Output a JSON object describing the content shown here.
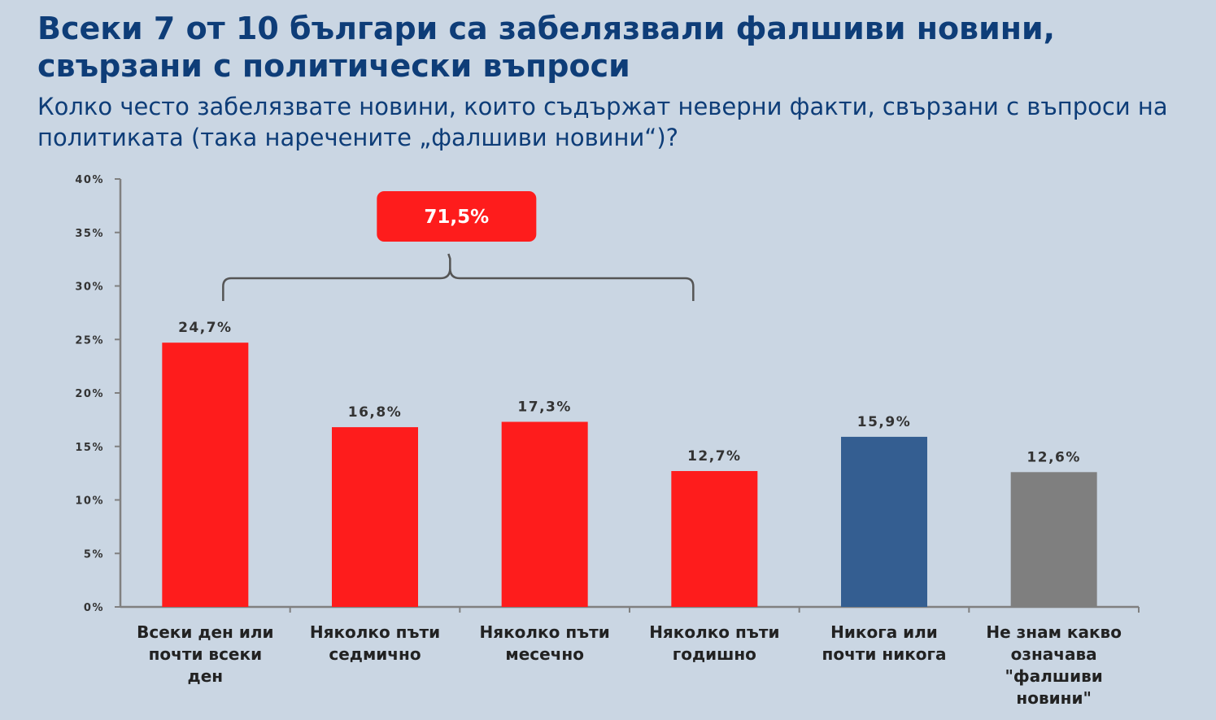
{
  "header": {
    "title": "Всеки 7 от 10 българи са забелязвали фалшиви новини, свързани с политически въпроси",
    "subtitle": "Колко често забелязвате новини, които съдържат неверни факти, свързани с въпроси на политиката (така наречените „фалшиви новини“)?"
  },
  "chart_data": {
    "type": "bar",
    "categories": [
      [
        "Всеки ден или",
        "почти всеки",
        "ден"
      ],
      [
        "Няколко пъти",
        "седмично"
      ],
      [
        "Няколко пъти",
        "месечно"
      ],
      [
        "Няколко пъти",
        "годишно"
      ],
      [
        "Никога  или",
        "почти никога"
      ],
      [
        "Не знам какво",
        "означава",
        "\"фалшиви",
        "новини\""
      ]
    ],
    "values": [
      24.7,
      16.8,
      17.3,
      12.7,
      15.9,
      12.6
    ],
    "value_labels": [
      "24,7%",
      "16,8%",
      "17,3%",
      "12,7%",
      "15,9%",
      "12,6%"
    ],
    "colors": [
      "#fe1c1c",
      "#fe1c1c",
      "#fe1c1c",
      "#fe1c1c",
      "#345e91",
      "#7f7f7f"
    ],
    "yticks": [
      0,
      5,
      10,
      15,
      20,
      25,
      30,
      35,
      40
    ],
    "ytick_labels": [
      "0%",
      "5%",
      "10%",
      "15%",
      "20%",
      "25%",
      "30%",
      "35%",
      "40%"
    ],
    "ylim": [
      0,
      40
    ],
    "grid": false,
    "axis_color": "#808080",
    "annotation": {
      "text": "71,5%",
      "covers_categories": [
        0,
        1,
        2,
        3
      ],
      "box_color": "#fe1c1c",
      "bracket_color": "#555555"
    }
  }
}
